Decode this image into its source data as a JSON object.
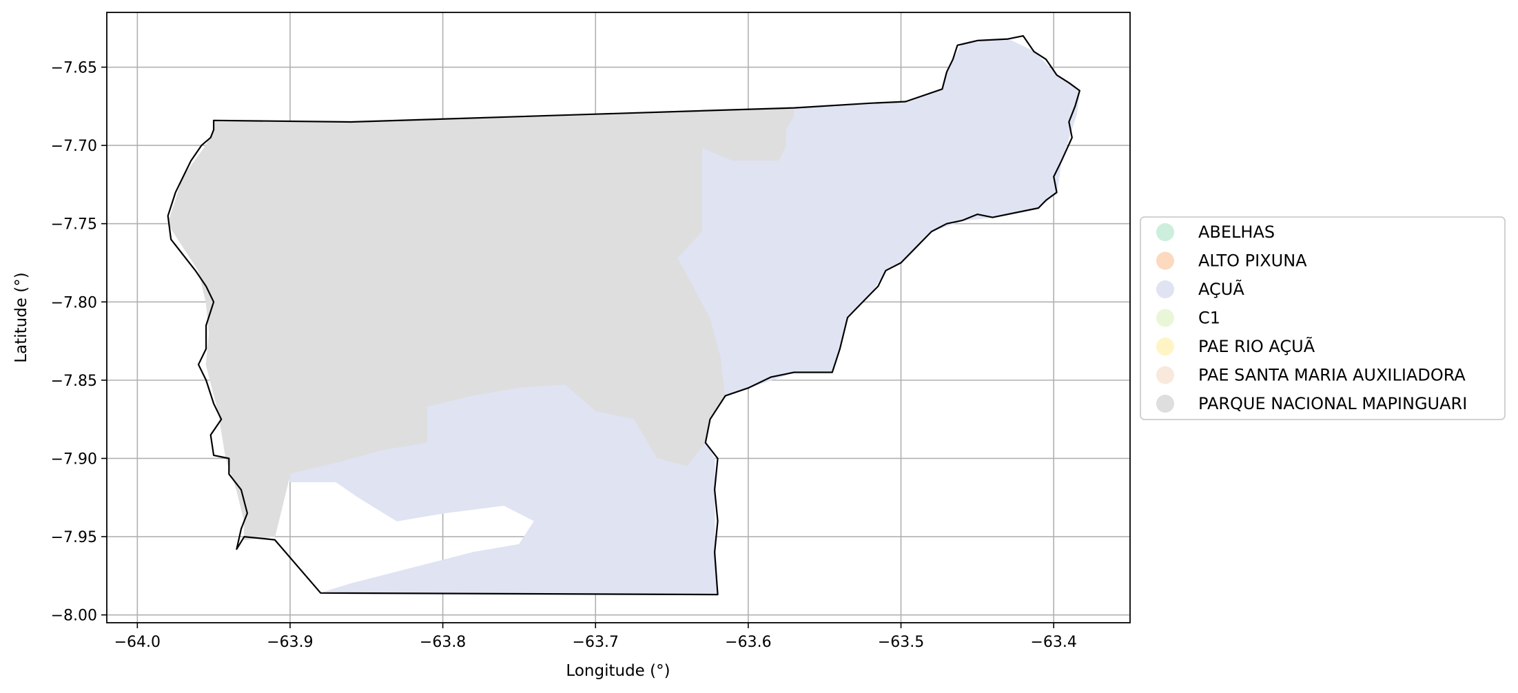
{
  "chart_data": {
    "type": "map",
    "xlabel": "Longitude (°)",
    "ylabel": "Latitude (°)",
    "xlim": [
      -64.02,
      -63.35
    ],
    "ylim": [
      -8.005,
      -7.615
    ],
    "x_ticks": [
      -64.0,
      -63.9,
      -63.8,
      -63.7,
      -63.6,
      -63.5,
      -63.4
    ],
    "y_ticks": [
      -7.65,
      -7.7,
      -7.75,
      -7.8,
      -7.85,
      -7.9,
      -7.95,
      -8.0
    ],
    "x_tick_labels": [
      "−64.0",
      "−63.9",
      "−63.8",
      "−63.7",
      "−63.6",
      "−63.5",
      "−63.4"
    ],
    "y_tick_labels": [
      "−7.65",
      "−7.70",
      "−7.75",
      "−7.80",
      "−7.85",
      "−7.90",
      "−7.95",
      "−8.00"
    ],
    "grid": true,
    "legend_position": "right",
    "legend": [
      {
        "label": "ABELHAS",
        "color": "#cdeedd"
      },
      {
        "label": "ALTO PIXUNA",
        "color": "#fcd9bf"
      },
      {
        "label": "AÇUÃ",
        "color": "#dfe3f2"
      },
      {
        "label": "C1",
        "color": "#e9f7d8"
      },
      {
        "label": "PAE RIO AÇUÃ",
        "color": "#fff4c4"
      },
      {
        "label": "PAE SANTA MARIA AUXILIADORA",
        "color": "#f8e9dc"
      },
      {
        "label": "PARQUE NACIONAL MAPINGUARI",
        "color": "#dedede"
      }
    ],
    "regions": [
      {
        "name": "PARQUE NACIONAL MAPINGUARI",
        "color": "#dedede",
        "polygon": [
          [
            -63.95,
            -7.684
          ],
          [
            -63.86,
            -7.685
          ],
          [
            -63.7,
            -7.68
          ],
          [
            -63.57,
            -7.676
          ],
          [
            -63.57,
            -7.682
          ],
          [
            -63.575,
            -7.69
          ],
          [
            -63.575,
            -7.7
          ],
          [
            -63.58,
            -7.71
          ],
          [
            -63.61,
            -7.71
          ],
          [
            -63.63,
            -7.702
          ],
          [
            -63.63,
            -7.755
          ],
          [
            -63.646,
            -7.772
          ],
          [
            -63.636,
            -7.79
          ],
          [
            -63.625,
            -7.81
          ],
          [
            -63.618,
            -7.835
          ],
          [
            -63.615,
            -7.86
          ],
          [
            -63.625,
            -7.875
          ],
          [
            -63.628,
            -7.89
          ],
          [
            -63.64,
            -7.905
          ],
          [
            -63.66,
            -7.9
          ],
          [
            -63.675,
            -7.875
          ],
          [
            -63.7,
            -7.87
          ],
          [
            -63.72,
            -7.853
          ],
          [
            -63.75,
            -7.855
          ],
          [
            -63.78,
            -7.86
          ],
          [
            -63.81,
            -7.867
          ],
          [
            -63.81,
            -7.89
          ],
          [
            -63.84,
            -7.895
          ],
          [
            -63.87,
            -7.903
          ],
          [
            -63.9,
            -7.91
          ],
          [
            -63.91,
            -7.95
          ],
          [
            -63.93,
            -7.952
          ],
          [
            -63.93,
            -7.94
          ],
          [
            -63.935,
            -7.92
          ],
          [
            -63.942,
            -7.9
          ],
          [
            -63.947,
            -7.87
          ],
          [
            -63.955,
            -7.84
          ],
          [
            -63.953,
            -7.82
          ],
          [
            -63.955,
            -7.8
          ],
          [
            -63.96,
            -7.78
          ],
          [
            -63.98,
            -7.75
          ],
          [
            -63.97,
            -7.72
          ],
          [
            -63.955,
            -7.7
          ],
          [
            -63.95,
            -7.69
          ]
        ]
      },
      {
        "name": "AÇUÃ",
        "color": "#dfe3f2",
        "polygon": [
          [
            -63.57,
            -7.676
          ],
          [
            -63.52,
            -7.673
          ],
          [
            -63.497,
            -7.672
          ],
          [
            -63.473,
            -7.664
          ],
          [
            -63.47,
            -7.653
          ],
          [
            -63.46,
            -7.635
          ],
          [
            -63.43,
            -7.632
          ],
          [
            -63.413,
            -7.64
          ],
          [
            -63.398,
            -7.655
          ],
          [
            -63.383,
            -7.665
          ],
          [
            -63.385,
            -7.68
          ],
          [
            -63.395,
            -7.71
          ],
          [
            -63.398,
            -7.73
          ],
          [
            -63.41,
            -7.74
          ],
          [
            -63.44,
            -7.746
          ],
          [
            -63.46,
            -7.748
          ],
          [
            -63.48,
            -7.755
          ],
          [
            -63.5,
            -7.775
          ],
          [
            -63.51,
            -7.78
          ],
          [
            -63.52,
            -7.795
          ],
          [
            -63.535,
            -7.81
          ],
          [
            -63.54,
            -7.83
          ],
          [
            -63.545,
            -7.845
          ],
          [
            -63.57,
            -7.845
          ],
          [
            -63.6,
            -7.855
          ],
          [
            -63.615,
            -7.86
          ],
          [
            -63.618,
            -7.835
          ],
          [
            -63.625,
            -7.81
          ],
          [
            -63.636,
            -7.79
          ],
          [
            -63.646,
            -7.772
          ],
          [
            -63.63,
            -7.755
          ],
          [
            -63.63,
            -7.702
          ],
          [
            -63.61,
            -7.71
          ],
          [
            -63.58,
            -7.71
          ],
          [
            -63.575,
            -7.7
          ],
          [
            -63.575,
            -7.69
          ],
          [
            -63.57,
            -7.682
          ]
        ]
      },
      {
        "name": "AÇUÃ",
        "color": "#dfe3f2",
        "polygon": [
          [
            -63.81,
            -7.867
          ],
          [
            -63.78,
            -7.86
          ],
          [
            -63.75,
            -7.855
          ],
          [
            -63.72,
            -7.853
          ],
          [
            -63.7,
            -7.87
          ],
          [
            -63.675,
            -7.875
          ],
          [
            -63.66,
            -7.9
          ],
          [
            -63.64,
            -7.905
          ],
          [
            -63.628,
            -7.89
          ],
          [
            -63.622,
            -7.9
          ],
          [
            -63.622,
            -7.95
          ],
          [
            -63.62,
            -7.987
          ],
          [
            -63.88,
            -7.986
          ],
          [
            -63.86,
            -7.98
          ],
          [
            -63.82,
            -7.97
          ],
          [
            -63.78,
            -7.96
          ],
          [
            -63.75,
            -7.955
          ],
          [
            -63.74,
            -7.94
          ],
          [
            -63.76,
            -7.93
          ],
          [
            -63.8,
            -7.935
          ],
          [
            -63.83,
            -7.94
          ],
          [
            -63.855,
            -7.925
          ],
          [
            -63.87,
            -7.915
          ],
          [
            -63.9,
            -7.915
          ],
          [
            -63.9,
            -7.91
          ],
          [
            -63.87,
            -7.903
          ],
          [
            -63.84,
            -7.895
          ],
          [
            -63.81,
            -7.89
          ]
        ]
      }
    ],
    "boundary": [
      [
        -63.95,
        -7.684
      ],
      [
        -63.86,
        -7.685
      ],
      [
        -63.7,
        -7.68
      ],
      [
        -63.57,
        -7.676
      ],
      [
        -63.52,
        -7.673
      ],
      [
        -63.497,
        -7.672
      ],
      [
        -63.473,
        -7.664
      ],
      [
        -63.47,
        -7.653
      ],
      [
        -63.466,
        -7.645
      ],
      [
        -63.463,
        -7.636
      ],
      [
        -63.45,
        -7.633
      ],
      [
        -63.43,
        -7.632
      ],
      [
        -63.42,
        -7.63
      ],
      [
        -63.413,
        -7.64
      ],
      [
        -63.405,
        -7.645
      ],
      [
        -63.398,
        -7.655
      ],
      [
        -63.39,
        -7.66
      ],
      [
        -63.383,
        -7.665
      ],
      [
        -63.386,
        -7.675
      ],
      [
        -63.39,
        -7.685
      ],
      [
        -63.388,
        -7.695
      ],
      [
        -63.395,
        -7.71
      ],
      [
        -63.4,
        -7.72
      ],
      [
        -63.398,
        -7.73
      ],
      [
        -63.405,
        -7.735
      ],
      [
        -63.41,
        -7.74
      ],
      [
        -63.42,
        -7.742
      ],
      [
        -63.44,
        -7.746
      ],
      [
        -63.45,
        -7.744
      ],
      [
        -63.46,
        -7.748
      ],
      [
        -63.47,
        -7.75
      ],
      [
        -63.48,
        -7.755
      ],
      [
        -63.49,
        -7.765
      ],
      [
        -63.5,
        -7.775
      ],
      [
        -63.51,
        -7.78
      ],
      [
        -63.515,
        -7.79
      ],
      [
        -63.52,
        -7.795
      ],
      [
        -63.53,
        -7.805
      ],
      [
        -63.535,
        -7.81
      ],
      [
        -63.54,
        -7.83
      ],
      [
        -63.545,
        -7.845
      ],
      [
        -63.56,
        -7.845
      ],
      [
        -63.57,
        -7.845
      ],
      [
        -63.585,
        -7.848
      ],
      [
        -63.6,
        -7.855
      ],
      [
        -63.615,
        -7.86
      ],
      [
        -63.625,
        -7.875
      ],
      [
        -63.628,
        -7.89
      ],
      [
        -63.62,
        -7.9
      ],
      [
        -63.622,
        -7.92
      ],
      [
        -63.62,
        -7.94
      ],
      [
        -63.622,
        -7.96
      ],
      [
        -63.62,
        -7.987
      ],
      [
        -63.88,
        -7.986
      ],
      [
        -63.91,
        -7.952
      ],
      [
        -63.93,
        -7.95
      ],
      [
        -63.935,
        -7.958
      ],
      [
        -63.932,
        -7.945
      ],
      [
        -63.928,
        -7.935
      ],
      [
        -63.932,
        -7.92
      ],
      [
        -63.94,
        -7.91
      ],
      [
        -63.94,
        -7.9
      ],
      [
        -63.95,
        -7.898
      ],
      [
        -63.952,
        -7.885
      ],
      [
        -63.945,
        -7.875
      ],
      [
        -63.95,
        -7.865
      ],
      [
        -63.955,
        -7.85
      ],
      [
        -63.96,
        -7.84
      ],
      [
        -63.955,
        -7.83
      ],
      [
        -63.955,
        -7.815
      ],
      [
        -63.95,
        -7.8
      ],
      [
        -63.955,
        -7.79
      ],
      [
        -63.962,
        -7.78
      ],
      [
        -63.97,
        -7.77
      ],
      [
        -63.978,
        -7.76
      ],
      [
        -63.98,
        -7.745
      ],
      [
        -63.975,
        -7.73
      ],
      [
        -63.97,
        -7.72
      ],
      [
        -63.965,
        -7.71
      ],
      [
        -63.958,
        -7.7
      ],
      [
        -63.952,
        -7.695
      ],
      [
        -63.95,
        -7.69
      ]
    ]
  }
}
